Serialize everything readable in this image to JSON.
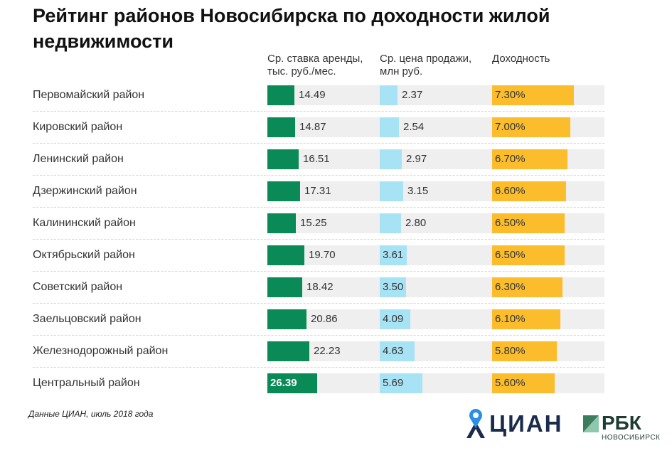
{
  "chart_data": {
    "type": "bar",
    "title": "Рейтинг районов Новосибирска по доходности жилой недвижимости",
    "categories": [
      "Первомайский район",
      "Кировский район",
      "Ленинский район",
      "Дзержинский район",
      "Калининский район",
      "Октябрьский район",
      "Советский район",
      "Заельцовский район",
      "Железнодорожный район",
      "Центральный район"
    ],
    "series": [
      {
        "name": "Ср. ставка аренды,\nтыс. руб./мес.",
        "color": "#0a8a56",
        "max": 26.39,
        "values": [
          14.49,
          14.87,
          16.51,
          17.31,
          15.25,
          19.7,
          18.42,
          20.86,
          22.23,
          26.39
        ],
        "labels": [
          "14.49",
          "14.87",
          "16.51",
          "17.31",
          "15.25",
          "19.70",
          "18.42",
          "20.86",
          "22.23",
          "26.39"
        ]
      },
      {
        "name": "Ср. цена продажи,\nмлн руб.",
        "color": "#a8e3f5",
        "max": 5.69,
        "values": [
          2.37,
          2.54,
          2.97,
          3.15,
          2.8,
          3.61,
          3.5,
          4.09,
          4.63,
          5.69
        ],
        "labels": [
          "2.37",
          "2.54",
          "2.97",
          "3.15",
          "2.80",
          "3.61",
          "3.50",
          "4.09",
          "4.63",
          "5.69"
        ]
      },
      {
        "name": "Доходность",
        "color": "#fbbd2c",
        "max": 7.3,
        "values": [
          7.3,
          7.0,
          6.7,
          6.6,
          6.5,
          6.5,
          6.3,
          6.1,
          5.8,
          5.6
        ],
        "labels": [
          "7.30%",
          "7.00%",
          "6.70%",
          "6.60%",
          "6.50%",
          "6.50%",
          "6.30%",
          "6.10%",
          "5.80%",
          "5.60%"
        ]
      }
    ],
    "footnote": "Данные ЦИАН, июль 2018 года"
  },
  "logos": {
    "cian": "ЦИАН",
    "rbk": "РБК",
    "rbk_sub": "НОВОСИБИРСК"
  }
}
